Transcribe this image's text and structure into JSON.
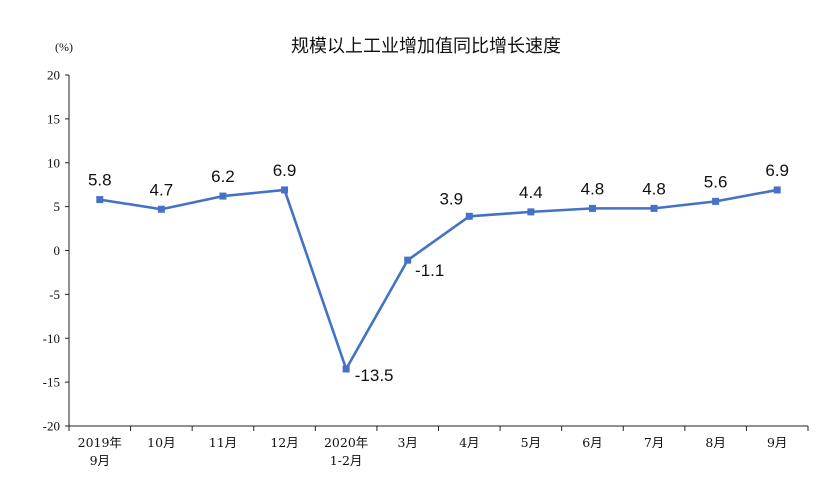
{
  "chart_data": {
    "type": "line",
    "title": "规模以上工业增加值同比增长速度",
    "unit_label": "(%)",
    "ylim": [
      -20,
      20
    ],
    "yticks": [
      20,
      15,
      10,
      5,
      0,
      -5,
      -10,
      -15,
      -20
    ],
    "categories": [
      [
        "2019年",
        "9月"
      ],
      [
        "10月"
      ],
      [
        "11月"
      ],
      [
        "12月"
      ],
      [
        "2020年",
        "1-2月"
      ],
      [
        "3月"
      ],
      [
        "4月"
      ],
      [
        "5月"
      ],
      [
        "6月"
      ],
      [
        "7月"
      ],
      [
        "8月"
      ],
      [
        "9月"
      ]
    ],
    "series": [
      {
        "values": [
          5.8,
          4.7,
          6.2,
          6.9,
          -13.5,
          -1.1,
          3.9,
          4.4,
          4.8,
          4.8,
          5.6,
          6.9
        ],
        "labels": [
          "5.8",
          "4.7",
          "6.2",
          "6.9",
          "-13.5",
          "-1.1",
          "3.9",
          "4.4",
          "4.8",
          "4.8",
          "5.6",
          "6.9"
        ],
        "color": "#4472c4"
      }
    ],
    "grid": false,
    "legend": "none"
  }
}
